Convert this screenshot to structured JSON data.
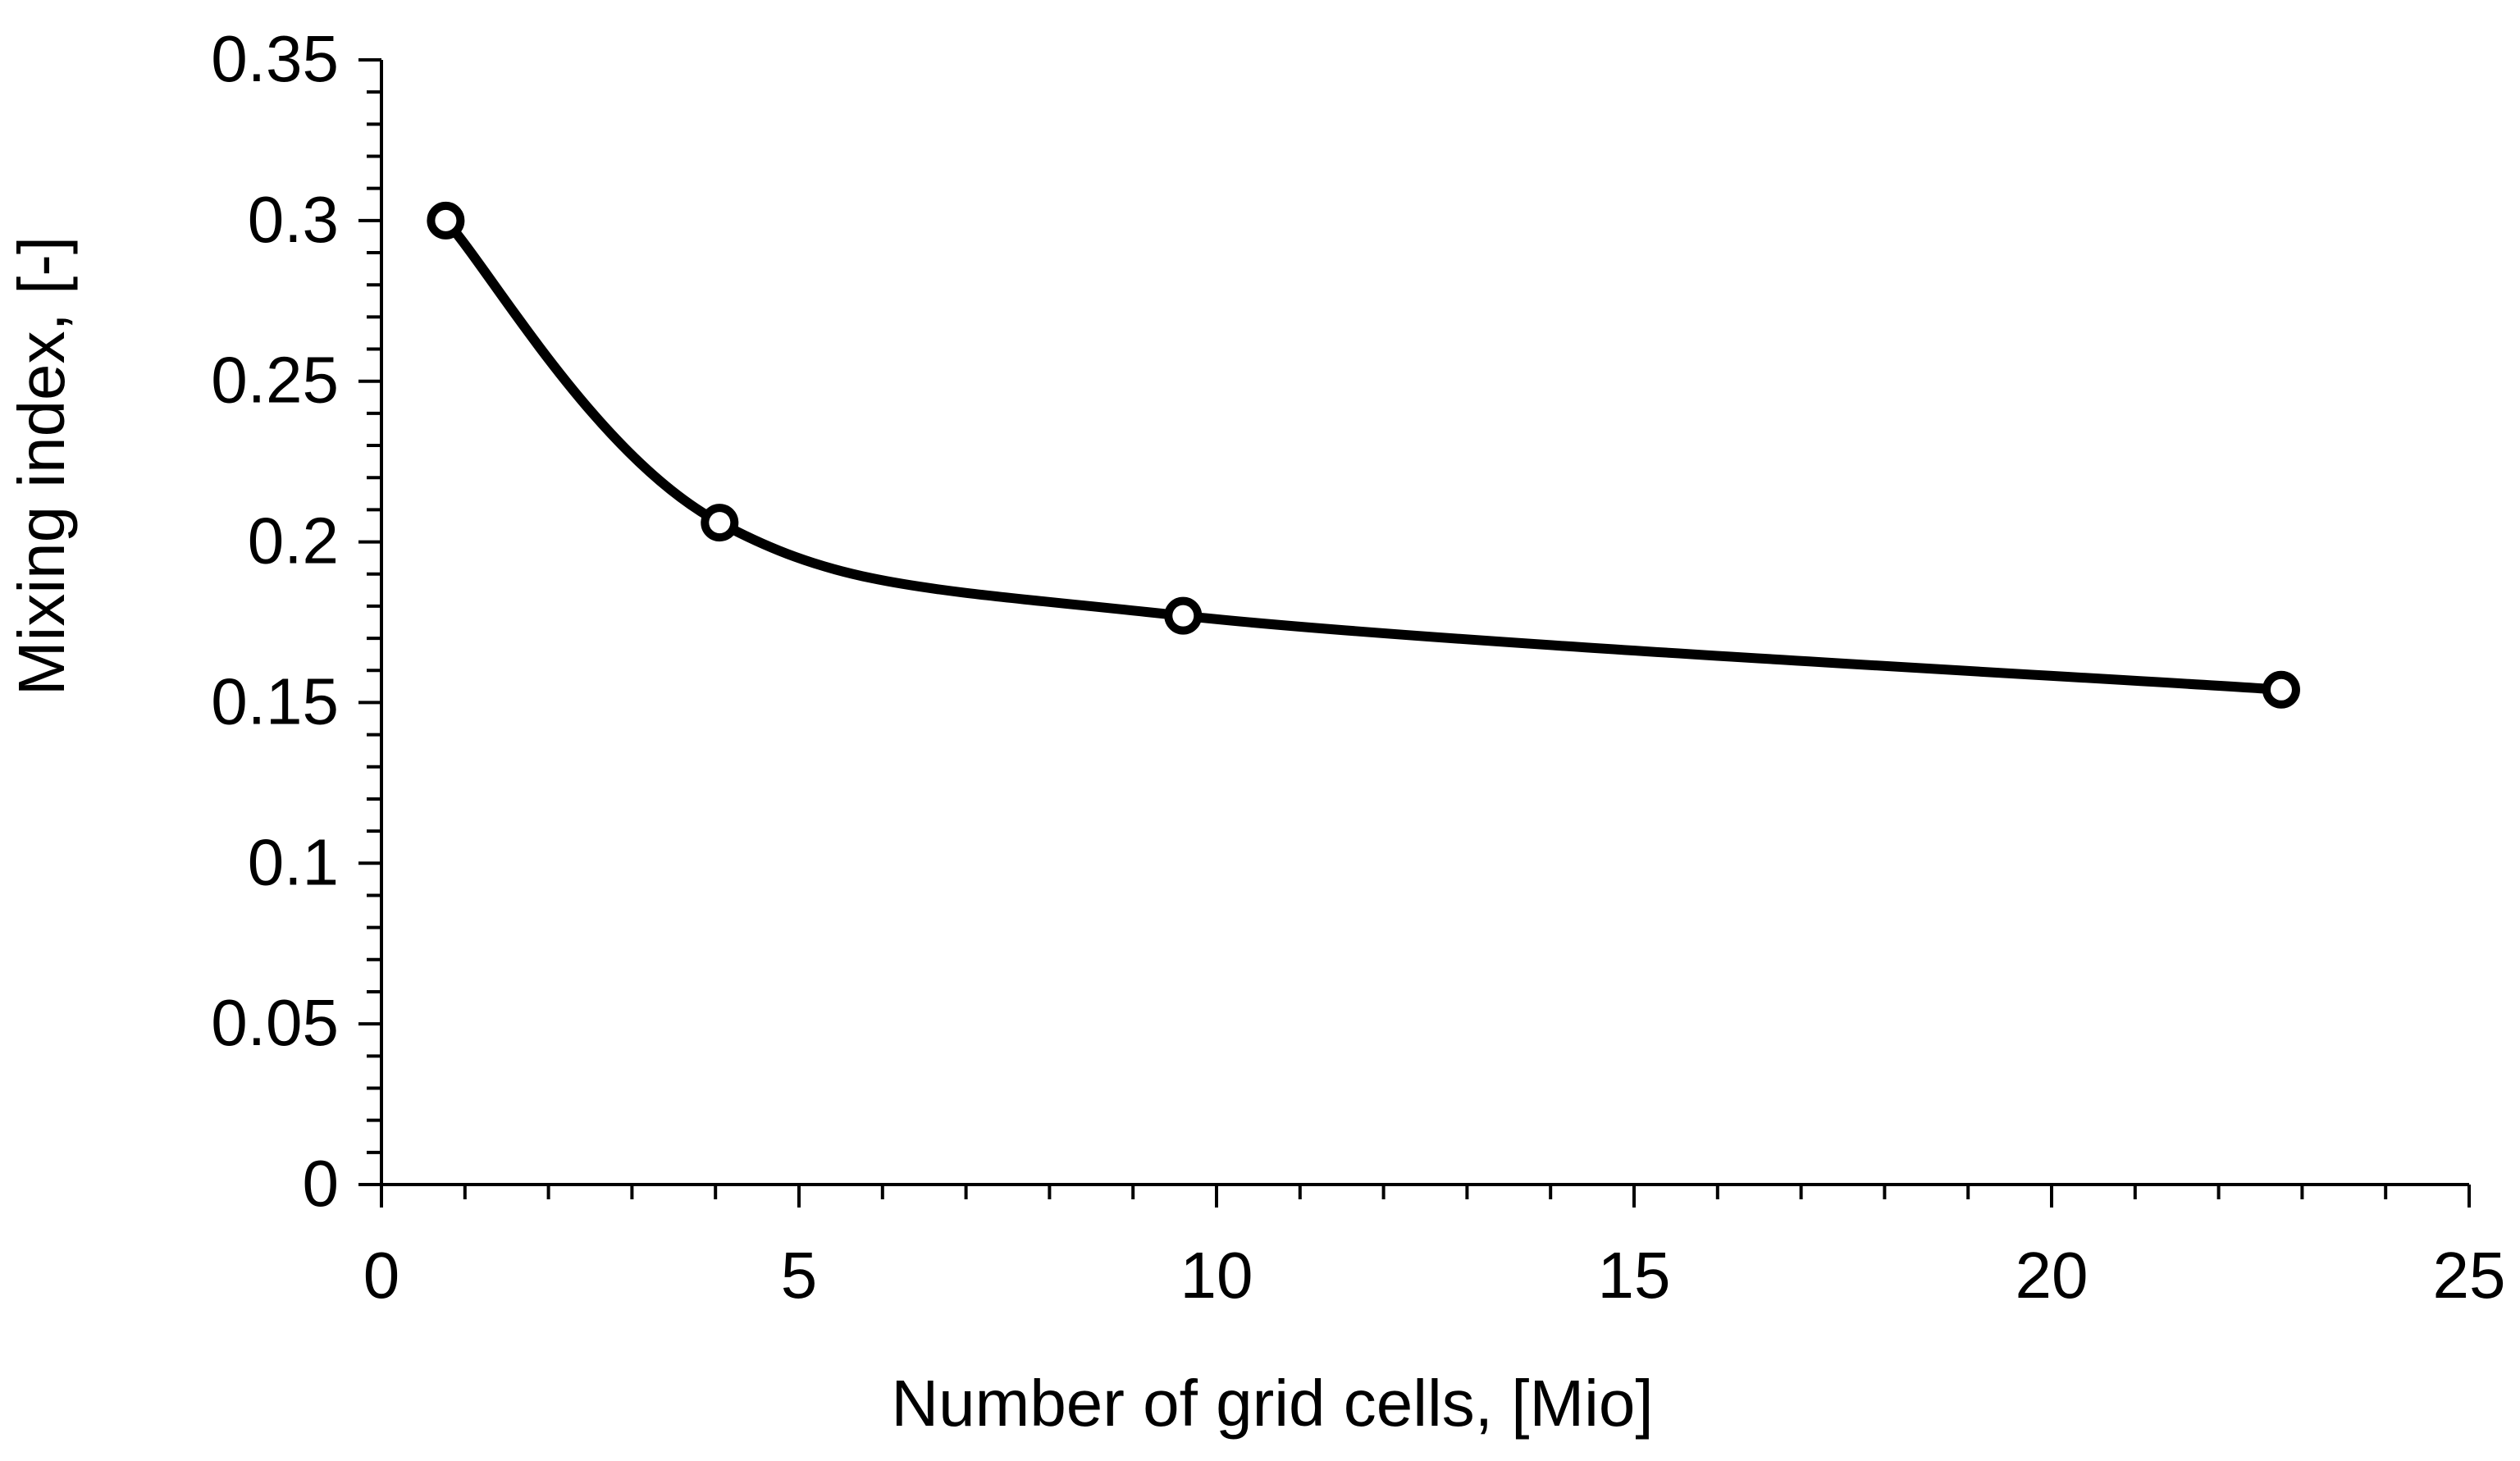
{
  "chart_data": {
    "type": "line",
    "title": "",
    "xlabel": "Number of grid cells, [Mio]",
    "ylabel": "Mixing index, [-]",
    "xlim": [
      0,
      25
    ],
    "ylim": [
      0,
      0.35
    ],
    "x_ticks": [
      0,
      5,
      10,
      15,
      20,
      25
    ],
    "x_tick_labels": [
      "0",
      "5",
      "10",
      "15",
      "20",
      "25"
    ],
    "y_ticks": [
      0,
      0.05,
      0.1,
      0.15,
      0.2,
      0.25,
      0.3,
      0.35
    ],
    "y_tick_labels": [
      "0",
      "0.05",
      "0.1",
      "0.15",
      "0.2",
      "0.25",
      "0.3",
      "0.35"
    ],
    "x_minor_step": 1,
    "y_minor_step": 0.01,
    "grid": false,
    "legend": "none",
    "smooth": true,
    "series": [
      {
        "name": "Mixing index",
        "x": [
          0.77,
          4.05,
          9.6,
          22.75
        ],
        "y": [
          0.3,
          0.206,
          0.177,
          0.154
        ],
        "color": "#000000",
        "marker": "open-circle"
      }
    ]
  }
}
